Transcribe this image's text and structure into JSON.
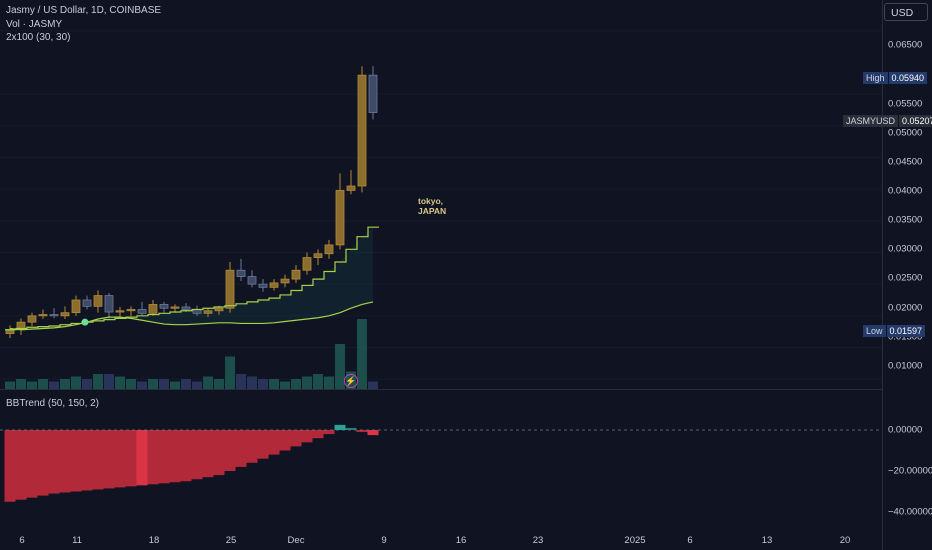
{
  "legend": {
    "symbol_line": "Jasmy / US Dollar, 1D, COINBASE",
    "volume_line": "Vol · JASMY",
    "ma_line": "2x100 (30, 30)",
    "indicator_line": "BBTrend (50, 150, 2)"
  },
  "currency_button": "USD",
  "annotation": {
    "line1": "tokyo,",
    "line2": "JAPAN"
  },
  "price_ticks": [
    "0.06500",
    "0.05500",
    "0.05000",
    "0.04500",
    "0.04000",
    "0.03500",
    "0.03000",
    "0.02500",
    "0.02000",
    "0.01500",
    "0.01000"
  ],
  "indicator_ticks": [
    "0.00000",
    "−20.00000",
    "−40.00000"
  ],
  "x_labels": [
    "6",
    "11",
    "18",
    "25",
    "Dec",
    "9",
    "16",
    "23",
    "2025",
    "6",
    "13",
    "20"
  ],
  "tags": {
    "high": {
      "label": "High",
      "value": "0.05940"
    },
    "symbol": {
      "label": "JASMYUSD",
      "value": "0.05207"
    },
    "low": {
      "label": "Low",
      "value": "0.01597"
    }
  },
  "colors": {
    "up": "#26a69a",
    "down": "#ef5350",
    "ma": "#a8d24a",
    "bbtrend_neg": "#b22a3a",
    "bbtrend_pos": "#26a69a"
  },
  "icons": {
    "event": "lightning-icon"
  },
  "chart_data": {
    "type": "candlestick",
    "symbol": "JASMYUSD",
    "interval": "1D",
    "x_axis_labels": [
      "6",
      "11",
      "18",
      "25",
      "Dec",
      "9",
      "16",
      "23",
      "2025",
      "6",
      "13",
      "20"
    ],
    "ylim": [
      0.0075,
      0.0675
    ],
    "candles": [
      {
        "o": 0.0172,
        "h": 0.0185,
        "l": 0.0165,
        "c": 0.0178
      },
      {
        "o": 0.0178,
        "h": 0.0196,
        "l": 0.017,
        "c": 0.019
      },
      {
        "o": 0.019,
        "h": 0.0205,
        "l": 0.0184,
        "c": 0.02
      },
      {
        "o": 0.02,
        "h": 0.021,
        "l": 0.0195,
        "c": 0.0202
      },
      {
        "o": 0.0202,
        "h": 0.0212,
        "l": 0.0196,
        "c": 0.02
      },
      {
        "o": 0.02,
        "h": 0.0215,
        "l": 0.0195,
        "c": 0.0205
      },
      {
        "o": 0.0205,
        "h": 0.0232,
        "l": 0.02,
        "c": 0.0225
      },
      {
        "o": 0.0225,
        "h": 0.0232,
        "l": 0.021,
        "c": 0.0215
      },
      {
        "o": 0.0215,
        "h": 0.024,
        "l": 0.0205,
        "c": 0.0232
      },
      {
        "o": 0.0232,
        "h": 0.0236,
        "l": 0.0196,
        "c": 0.0206
      },
      {
        "o": 0.0206,
        "h": 0.0214,
        "l": 0.0198,
        "c": 0.0208
      },
      {
        "o": 0.0208,
        "h": 0.0215,
        "l": 0.02,
        "c": 0.021
      },
      {
        "o": 0.021,
        "h": 0.0222,
        "l": 0.02,
        "c": 0.0204
      },
      {
        "o": 0.0204,
        "h": 0.0225,
        "l": 0.02,
        "c": 0.0218
      },
      {
        "o": 0.0218,
        "h": 0.0222,
        "l": 0.0205,
        "c": 0.0212
      },
      {
        "o": 0.0212,
        "h": 0.0218,
        "l": 0.0205,
        "c": 0.0214
      },
      {
        "o": 0.0214,
        "h": 0.022,
        "l": 0.0206,
        "c": 0.021
      },
      {
        "o": 0.021,
        "h": 0.0216,
        "l": 0.02,
        "c": 0.0204
      },
      {
        "o": 0.0204,
        "h": 0.0212,
        "l": 0.0198,
        "c": 0.0208
      },
      {
        "o": 0.0208,
        "h": 0.0216,
        "l": 0.0202,
        "c": 0.0212
      },
      {
        "o": 0.0212,
        "h": 0.0285,
        "l": 0.0205,
        "c": 0.0272
      },
      {
        "o": 0.0272,
        "h": 0.029,
        "l": 0.0255,
        "c": 0.0262
      },
      {
        "o": 0.0262,
        "h": 0.0272,
        "l": 0.0245,
        "c": 0.025
      },
      {
        "o": 0.025,
        "h": 0.0258,
        "l": 0.0238,
        "c": 0.0245
      },
      {
        "o": 0.0245,
        "h": 0.0258,
        "l": 0.024,
        "c": 0.0252
      },
      {
        "o": 0.0252,
        "h": 0.0265,
        "l": 0.0245,
        "c": 0.0258
      },
      {
        "o": 0.0258,
        "h": 0.028,
        "l": 0.0252,
        "c": 0.0272
      },
      {
        "o": 0.0272,
        "h": 0.03,
        "l": 0.0265,
        "c": 0.0292
      },
      {
        "o": 0.0292,
        "h": 0.0305,
        "l": 0.028,
        "c": 0.0298
      },
      {
        "o": 0.0298,
        "h": 0.032,
        "l": 0.029,
        "c": 0.0312
      },
      {
        "o": 0.0312,
        "h": 0.0425,
        "l": 0.0305,
        "c": 0.0398
      },
      {
        "o": 0.0398,
        "h": 0.043,
        "l": 0.0392,
        "c": 0.0405
      },
      {
        "o": 0.0405,
        "h": 0.0594,
        "l": 0.0395,
        "c": 0.058
      },
      {
        "o": 0.058,
        "h": 0.0594,
        "l": 0.051,
        "c": 0.0521
      }
    ],
    "volume": [
      3,
      4,
      3,
      4,
      3,
      4,
      5,
      4,
      6,
      6,
      5,
      4,
      3,
      4,
      4,
      3,
      4,
      3,
      5,
      4,
      13,
      6,
      5,
      4,
      4,
      3,
      4,
      5,
      6,
      5,
      18,
      7,
      28,
      3
    ],
    "ma_upper": [
      0.0178,
      0.018,
      0.0182,
      0.0183,
      0.0184,
      0.0186,
      0.0188,
      0.019,
      0.0192,
      0.0194,
      0.0196,
      0.0198,
      0.02,
      0.0202,
      0.0204,
      0.0206,
      0.0208,
      0.021,
      0.0212,
      0.0214,
      0.0216,
      0.0219,
      0.0222,
      0.0225,
      0.0228,
      0.0233,
      0.024,
      0.0248,
      0.0258,
      0.027,
      0.0285,
      0.0305,
      0.0325,
      0.034
    ],
    "ma_lower": [
      0.018,
      0.0178,
      0.0179,
      0.018,
      0.0181,
      0.0183,
      0.0186,
      0.019,
      0.0195,
      0.0198,
      0.0198,
      0.0196,
      0.0193,
      0.019,
      0.0187,
      0.0186,
      0.0186,
      0.0187,
      0.0188,
      0.0189,
      0.0189,
      0.0188,
      0.0188,
      0.0188,
      0.0189,
      0.0191,
      0.0193,
      0.0195,
      0.0197,
      0.02,
      0.0205,
      0.0212,
      0.0218,
      0.0222
    ],
    "bbtrend_ylim": [
      -45,
      3
    ],
    "bbtrend": [
      -35,
      -34,
      -33,
      -32,
      -31,
      -30.5,
      -30,
      -29.5,
      -29,
      -28.5,
      -28,
      -27.5,
      -27,
      -26.5,
      -26,
      -25.5,
      -25,
      -24,
      -23,
      -22,
      -20,
      -18,
      -16,
      -14,
      -12,
      -10,
      -8,
      -6,
      -4,
      -2,
      2.5,
      1,
      -1,
      -2.5
    ]
  }
}
